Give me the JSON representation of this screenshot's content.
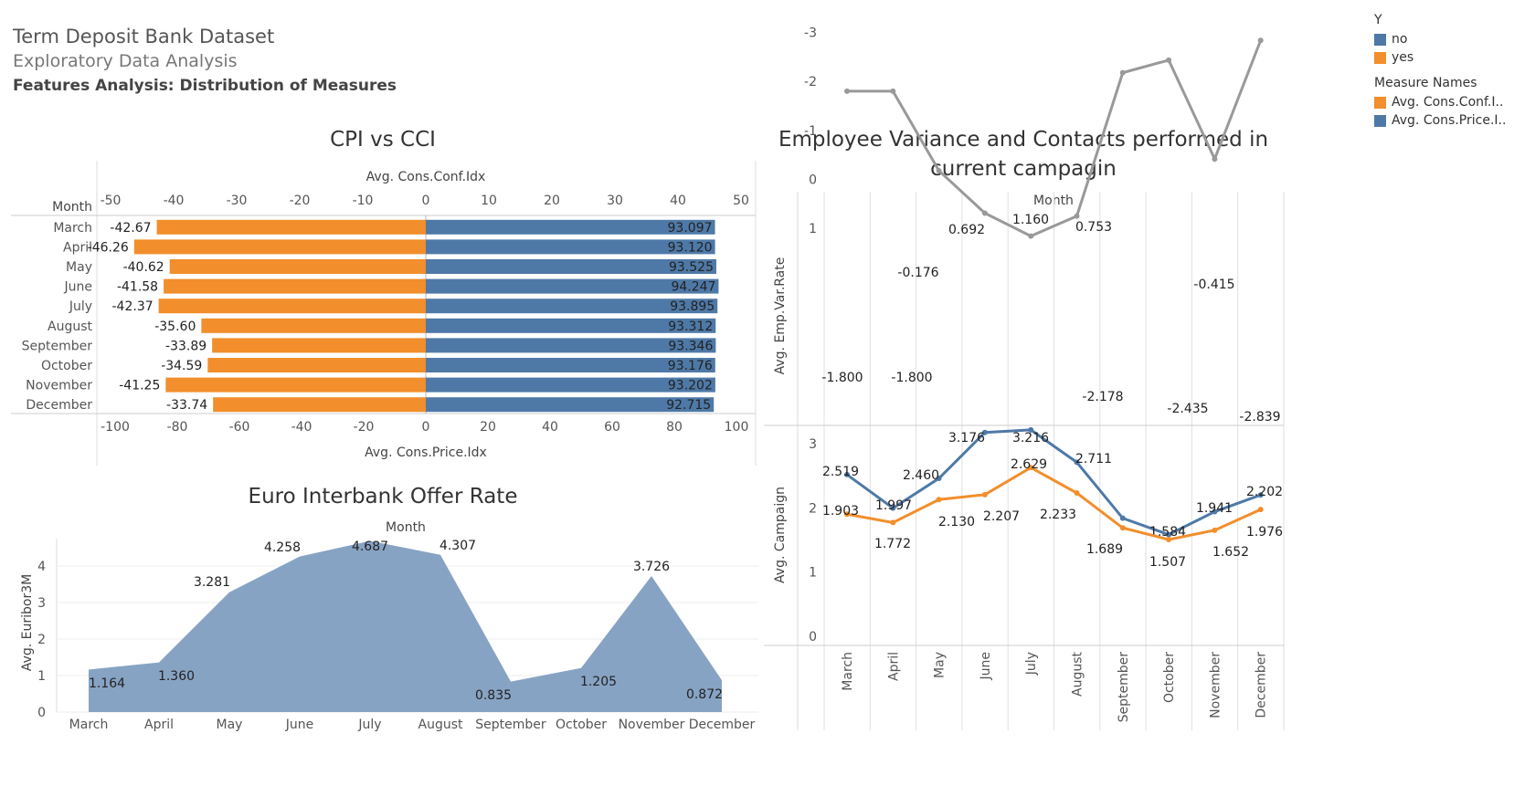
{
  "header": {
    "title": "Term Deposit Bank Dataset",
    "subtitle": "Exploratory Data Analysis",
    "section": "Features Analysis: Distribution of Measures"
  },
  "legend": {
    "y_title": "Y",
    "y_items": [
      {
        "label": "no",
        "color": "#4e79a7"
      },
      {
        "label": "yes",
        "color": "#f28e2b"
      }
    ],
    "measure_title": "Measure Names",
    "measure_items": [
      {
        "label": "Avg. Cons.Conf.I..",
        "color": "#f28e2b"
      },
      {
        "label": "Avg. Cons.Price.I..",
        "color": "#4e79a7"
      }
    ]
  },
  "colors": {
    "blue": "#4e79a7",
    "orange": "#f28e2b",
    "gray": "#999999",
    "area": "#87a3c4"
  },
  "chart_data": [
    {
      "type": "bar",
      "title": "CPI vs CCI",
      "row_header": "Month",
      "categories": [
        "March",
        "April",
        "May",
        "June",
        "July",
        "August",
        "September",
        "October",
        "November",
        "December"
      ],
      "series": [
        {
          "name": "Avg. Cons.Conf.Idx",
          "values": [
            -42.67,
            -46.26,
            -40.62,
            -41.58,
            -42.37,
            -35.6,
            -33.89,
            -34.59,
            -41.25,
            -33.74
          ],
          "labels": [
            "-42.67",
            "-46.26",
            "-40.62",
            "-41.58",
            "-42.37",
            "-35.60",
            "-33.89",
            "-34.59",
            "-41.25",
            "-33.74"
          ]
        },
        {
          "name": "Avg. Cons.Price.Idx",
          "values": [
            93.097,
            93.12,
            93.525,
            94.247,
            93.895,
            93.312,
            93.346,
            93.176,
            93.202,
            92.715
          ],
          "labels": [
            "93.097",
            "93.120",
            "93.525",
            "94.247",
            "93.895",
            "93.312",
            "93.346",
            "93.176",
            "93.202",
            "92.715"
          ]
        }
      ],
      "top_axis": {
        "label": "Avg. Cons.Conf.Idx",
        "ticks": [
          -50,
          -40,
          -30,
          -20,
          -10,
          0,
          10,
          20,
          30,
          40,
          50
        ]
      },
      "bottom_axis": {
        "label": "Avg. Cons.Price.Idx",
        "ticks": [
          -100,
          -80,
          -60,
          -40,
          -20,
          0,
          20,
          40,
          60,
          80,
          100
        ]
      }
    },
    {
      "type": "area",
      "title": "Euro Interbank Offer Rate",
      "xlabel": "Month",
      "ylabel": "Avg. Euribor3M",
      "categories": [
        "March",
        "April",
        "May",
        "June",
        "July",
        "August",
        "September",
        "October",
        "November",
        "December"
      ],
      "values": [
        1.164,
        1.36,
        3.281,
        4.258,
        4.687,
        4.307,
        0.835,
        1.205,
        3.726,
        0.872
      ],
      "labels": [
        "1.164",
        "1.360",
        "3.281",
        "4.258",
        "4.687",
        "4.307",
        "0.835",
        "1.205",
        "3.726",
        "0.872"
      ],
      "y_ticks": [
        0,
        1,
        2,
        3,
        4
      ],
      "ylim": [
        0,
        4.8
      ]
    },
    {
      "type": "line",
      "title": "Employee Variance and Contacts performed in current campagin",
      "title_lines": [
        "Employee Variance and Contacts performed in",
        "current campagin"
      ],
      "xlabel": "Month",
      "categories": [
        "March",
        "April",
        "May",
        "June",
        "July",
        "August",
        "September",
        "October",
        "November",
        "December"
      ],
      "panels": [
        {
          "ylabel": "Avg. Emp.Var.Rate",
          "y_ticks": [
            1,
            0,
            -1,
            -2,
            -3
          ],
          "ylim": [
            -3.1,
            1.25
          ],
          "series": [
            {
              "values": [
                -1.8,
                -1.8,
                -0.176,
                0.692,
                1.16,
                0.753,
                -2.178,
                -2.435,
                -0.415,
                -2.839
              ],
              "labels": [
                "-1.800",
                "-1.800",
                "-0.176",
                "0.692",
                "1.160",
                "0.753",
                "-2.178",
                "-2.435",
                "-0.415",
                "-2.839"
              ]
            }
          ]
        },
        {
          "ylabel": "Avg. Campaign",
          "y_ticks": [
            3,
            2,
            1,
            0
          ],
          "ylim": [
            0,
            3.25
          ],
          "series": [
            {
              "name": "no",
              "values": [
                2.519,
                1.997,
                2.46,
                3.176,
                3.216,
                2.711,
                1.84,
                1.584,
                1.941,
                2.202
              ],
              "labels": [
                "2.519",
                "1.997",
                "2.460",
                "3.176",
                "3.216",
                "2.711",
                "",
                "1.584",
                "1.941",
                "2.202"
              ]
            },
            {
              "name": "yes",
              "values": [
                1.903,
                1.772,
                2.13,
                2.207,
                2.629,
                2.233,
                1.689,
                1.507,
                1.652,
                1.976
              ],
              "labels": [
                "1.903",
                "1.772",
                "2.130",
                "2.207",
                "2.629",
                "2.233",
                "1.689",
                "1.507",
                "1.652",
                "1.976"
              ]
            }
          ]
        }
      ]
    }
  ]
}
